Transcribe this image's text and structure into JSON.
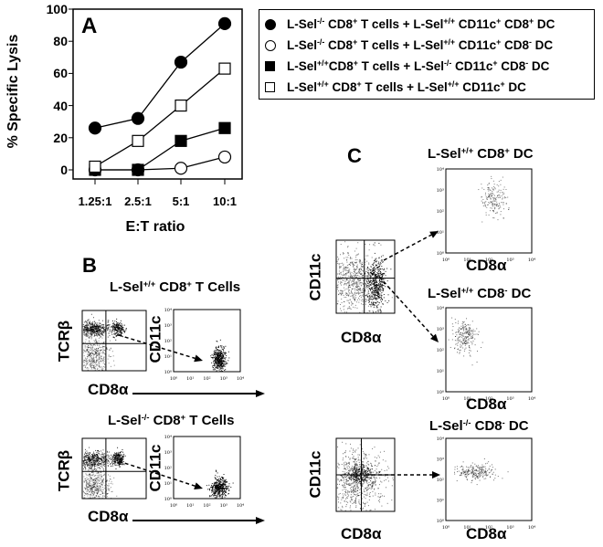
{
  "chart_data": {
    "type": "line",
    "panel_label": "A",
    "xlabel": "E:T ratio",
    "ylabel": "% Specific Lysis",
    "categories": [
      "1.25:1",
      "2.5:1",
      "5:1",
      "10:1"
    ],
    "ylim": [
      0,
      100
    ],
    "yticks": [
      "0",
      "20",
      "40",
      "60",
      "80",
      "100"
    ],
    "grid": false,
    "legend_placement": "right-outside-top",
    "series": [
      {
        "marker": "filled-circle",
        "values": [
          26,
          32,
          67,
          91
        ],
        "name_parts": [
          [
            "L-Sel",
            ""
          ],
          [
            "",
            "-/-"
          ],
          [
            " CD8",
            ""
          ],
          [
            "",
            "+"
          ],
          [
            " T cells + L-Sel",
            ""
          ],
          [
            "",
            "+/+"
          ],
          [
            " CD11c",
            ""
          ],
          [
            "",
            "+"
          ],
          [
            " CD8",
            ""
          ],
          [
            "",
            "+"
          ],
          [
            " DC",
            ""
          ]
        ]
      },
      {
        "marker": "open-circle",
        "values": [
          0,
          0,
          1,
          8
        ],
        "name_parts": [
          [
            "L-Sel",
            ""
          ],
          [
            "",
            "-/-"
          ],
          [
            " CD8",
            ""
          ],
          [
            "",
            "+"
          ],
          [
            " T cells + L-Sel",
            ""
          ],
          [
            "",
            "+/+"
          ],
          [
            " CD11c",
            ""
          ],
          [
            "",
            "+"
          ],
          [
            " CD8",
            ""
          ],
          [
            "",
            "-"
          ],
          [
            " DC",
            ""
          ]
        ]
      },
      {
        "marker": "filled-square",
        "values": [
          0,
          0,
          18,
          26
        ],
        "name_parts": [
          [
            "L-Sel",
            ""
          ],
          [
            "",
            "+/+"
          ],
          [
            "CD8",
            ""
          ],
          [
            "",
            "+"
          ],
          [
            " T cells + L-Sel",
            ""
          ],
          [
            "",
            "-/-"
          ],
          [
            " CD11c",
            ""
          ],
          [
            "",
            "+"
          ],
          [
            " CD8",
            ""
          ],
          [
            "",
            "-"
          ],
          [
            " DC",
            ""
          ]
        ]
      },
      {
        "marker": "open-square",
        "values": [
          2,
          18,
          40,
          63
        ],
        "name_parts": [
          [
            "L-Sel",
            ""
          ],
          [
            "",
            "+/+"
          ],
          [
            " CD8",
            ""
          ],
          [
            "",
            "+"
          ],
          [
            " T cells + L-Sel",
            ""
          ],
          [
            "",
            "+/+"
          ],
          [
            " CD11c",
            ""
          ],
          [
            "",
            "+"
          ],
          [
            " DC",
            ""
          ]
        ]
      }
    ]
  },
  "panel_b": {
    "label": "B",
    "top_title": [
      [
        "L-Sel",
        ""
      ],
      [
        "",
        "+/+"
      ],
      [
        " CD8",
        ""
      ],
      [
        "",
        "+"
      ],
      [
        " T Cells",
        ""
      ]
    ],
    "bottom_title": [
      [
        "L-Sel",
        ""
      ],
      [
        "",
        "-/-"
      ],
      [
        " CD8",
        ""
      ],
      [
        "",
        "+"
      ],
      [
        " T Cells",
        ""
      ]
    ],
    "y_axis_left": "TCRβ",
    "y_axis_right": "CD11c",
    "x_axis": "CD8α"
  },
  "panel_c": {
    "label": "C",
    "title_1": [
      [
        "L-Sel",
        ""
      ],
      [
        "",
        "+/+"
      ],
      [
        " CD8",
        ""
      ],
      [
        "",
        "+"
      ],
      [
        " DC",
        ""
      ]
    ],
    "title_2": [
      [
        "L-Sel",
        ""
      ],
      [
        "",
        "+/+"
      ],
      [
        " CD8",
        ""
      ],
      [
        "",
        "-"
      ],
      [
        " DC",
        ""
      ]
    ],
    "title_3": [
      [
        "L-Sel",
        ""
      ],
      [
        "",
        "-/-"
      ],
      [
        " CD8",
        ""
      ],
      [
        "",
        "-"
      ],
      [
        " DC",
        ""
      ]
    ],
    "y_axis": "CD11c",
    "x_axis": "CD8α"
  },
  "flow_ticks": [
    "10⁰",
    "10¹",
    "10²",
    "10³",
    "10⁴"
  ]
}
